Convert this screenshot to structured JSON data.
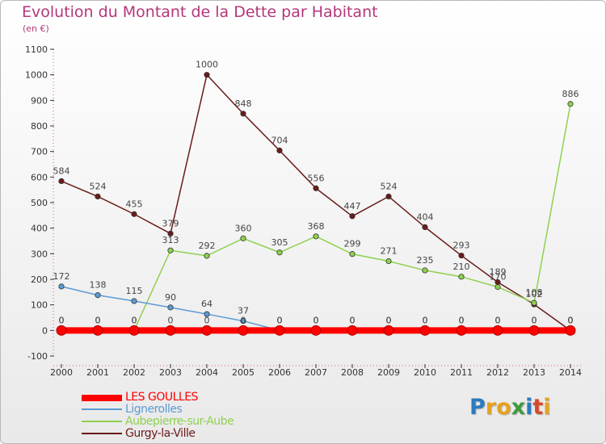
{
  "header": {
    "title": "Evolution du Montant de la Dette par Habitant",
    "subtitle": "(en €)"
  },
  "logo": {
    "text": "Proxiti",
    "letters": [
      {
        "ch": "P",
        "color": "#2b7bbf"
      },
      {
        "ch": "r",
        "color": "#e8a11e"
      },
      {
        "ch": "o",
        "color": "#e8a11e"
      },
      {
        "ch": "x",
        "color": "#3d9c3a"
      },
      {
        "ch": "i",
        "color": "#2b7bbf"
      },
      {
        "ch": "t",
        "color": "#d64a2a"
      },
      {
        "ch": "i",
        "color": "#e8a11e"
      }
    ]
  },
  "chart_data": {
    "type": "line",
    "title": "Evolution du Montant de la Dette par Habitant",
    "subtitle": "(en €)",
    "xlabel": "",
    "ylabel": "",
    "ylim": [
      -100,
      1100
    ],
    "yticks": [
      -100,
      0,
      100,
      200,
      300,
      400,
      500,
      600,
      700,
      800,
      900,
      1000,
      1100
    ],
    "categories": [
      "2000",
      "2001",
      "2002",
      "2003",
      "2004",
      "2005",
      "2006",
      "2007",
      "2008",
      "2009",
      "2010",
      "2011",
      "2012",
      "2013",
      "2014"
    ],
    "grid": false,
    "legend_position": "bottom-left",
    "series": [
      {
        "name": "LES GOULLES",
        "color": "#ff0000",
        "values": [
          0,
          0,
          0,
          0,
          0,
          0,
          0,
          0,
          0,
          0,
          0,
          0,
          0,
          0,
          0
        ],
        "labels": [
          "0",
          "0",
          "0",
          "0",
          "0",
          "0",
          "0",
          "0",
          "0",
          "0",
          "0",
          "0",
          "0",
          "0",
          "0"
        ]
      },
      {
        "name": "Lignerolles",
        "color": "#5b9bd5",
        "values": [
          172,
          138,
          115,
          90,
          64,
          37,
          0,
          0,
          0,
          0,
          0,
          0,
          0,
          0,
          0
        ],
        "labels": [
          "172",
          "138",
          "115",
          "90",
          "64",
          "37",
          "0",
          "0",
          "0",
          "0",
          "0",
          "0",
          "0",
          "0",
          "0"
        ]
      },
      {
        "name": "Aubepierre-sur-Aube",
        "color": "#8fd14f",
        "values": [
          0,
          0,
          0,
          313,
          292,
          360,
          305,
          368,
          299,
          271,
          235,
          210,
          170,
          108,
          886
        ],
        "labels": [
          "0",
          "0",
          "0",
          "313",
          "292",
          "360",
          "305",
          "368",
          "299",
          "271",
          "235",
          "210",
          "170",
          "108",
          "886"
        ]
      },
      {
        "name": "Gurgy-la-Ville",
        "color": "#6b1a1a",
        "values": [
          584,
          524,
          455,
          379,
          1000,
          848,
          704,
          556,
          447,
          524,
          404,
          293,
          189,
          102,
          0
        ],
        "labels": [
          "584",
          "524",
          "455",
          "379",
          "1000",
          "848",
          "704",
          "556",
          "447",
          "524",
          "404",
          "293",
          "189",
          "102",
          "0"
        ]
      }
    ]
  }
}
